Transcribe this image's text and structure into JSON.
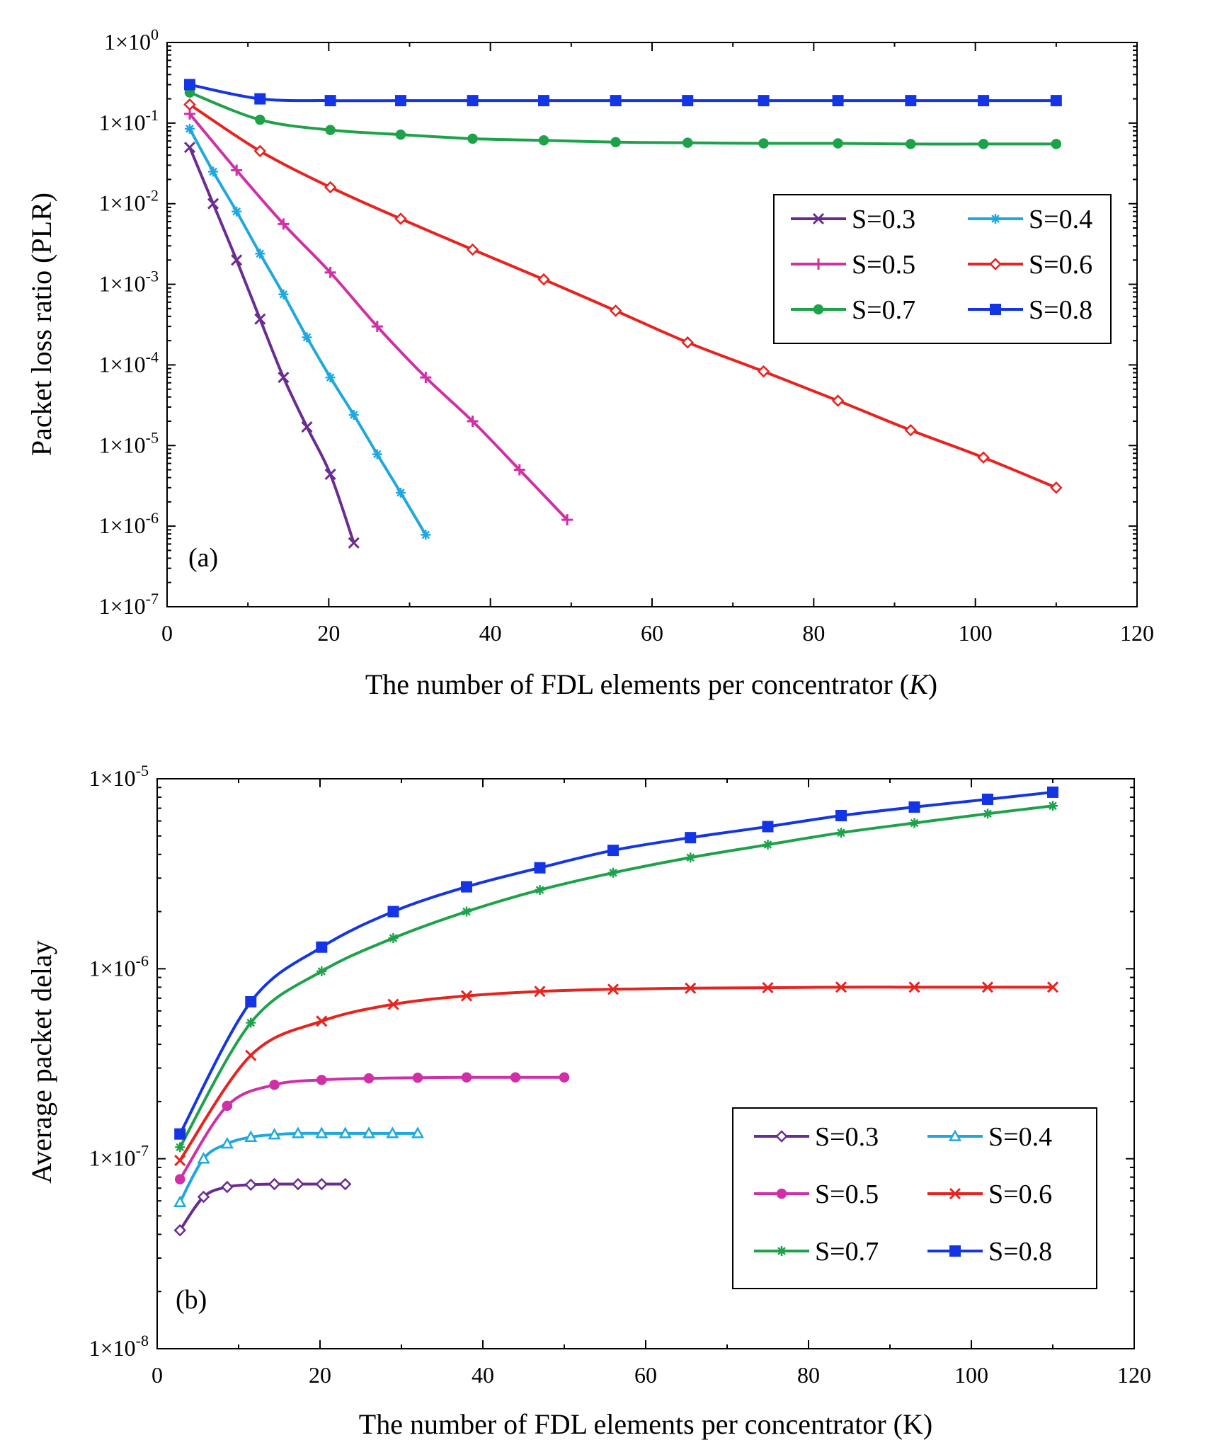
{
  "chart_data": [
    {
      "type": "line",
      "panel_label": "(a)",
      "xlabel_prefix": "The number of FDL elements per concentrator (",
      "xlabel_var": "K",
      "xlabel_suffix": ")",
      "ylabel": "Packet loss ratio (PLR)",
      "xlim": [
        0,
        120
      ],
      "ylim": [
        1e-07,
        1
      ],
      "yscale": "log",
      "x_ticks": [
        "0",
        "20",
        "40",
        "60",
        "80",
        "100",
        "120"
      ],
      "y_ticks": [
        {
          "base": "1×10",
          "exp": "0"
        },
        {
          "base": "1×10",
          "exp": "-1"
        },
        {
          "base": "1×10",
          "exp": "-2"
        },
        {
          "base": "1×10",
          "exp": "-3"
        },
        {
          "base": "1×10",
          "exp": "-4"
        },
        {
          "base": "1×10",
          "exp": "-5"
        },
        {
          "base": "1×10",
          "exp": "-6"
        },
        {
          "base": "1×10",
          "exp": "-7"
        }
      ],
      "grid": false,
      "legend_position": "upper-right",
      "series": [
        {
          "name": "S=0.3",
          "color": "#6a2c91",
          "marker": "x",
          "x": [
            2.8,
            5.7,
            8.6,
            11.5,
            14.4,
            17.3,
            20.2,
            23.1
          ],
          "y": [
            0.05,
            0.01,
            0.002,
            0.00037,
            7e-05,
            1.7e-05,
            4.4e-06,
            6.2e-07
          ]
        },
        {
          "name": "S=0.4",
          "color": "#1fa8e0",
          "marker": "asterisk",
          "x": [
            2.8,
            5.7,
            8.6,
            11.5,
            14.4,
            17.3,
            20.2,
            23.1,
            26,
            28.9,
            32
          ],
          "y": [
            0.085,
            0.025,
            0.008,
            0.0024,
            0.00075,
            0.00022,
            7e-05,
            2.4e-05,
            7.8e-06,
            2.6e-06,
            7.8e-07
          ]
        },
        {
          "name": "S=0.5",
          "color": "#d02fa6",
          "marker": "plus",
          "x": [
            2.8,
            8.6,
            14.4,
            20.2,
            26,
            32,
            37.8,
            43.6,
            49.5
          ],
          "y": [
            0.13,
            0.026,
            0.0056,
            0.0014,
            0.0003,
            7e-05,
            2e-05,
            5e-06,
            1.2e-06
          ]
        },
        {
          "name": "S=0.6",
          "color": "#e8221e",
          "marker": "diamond",
          "x": [
            2.8,
            11.5,
            20.2,
            28.9,
            37.8,
            46.6,
            55.5,
            64.4,
            73.8,
            83,
            92,
            101,
            110
          ],
          "y": [
            0.17,
            0.045,
            0.016,
            0.0065,
            0.0027,
            0.00115,
            0.00047,
            0.00019,
            8.3e-05,
            3.6e-05,
            1.55e-05,
            7.1e-06,
            3e-06
          ]
        },
        {
          "name": "S=0.7",
          "color": "#1da24a",
          "marker": "circle",
          "x": [
            2.8,
            11.5,
            20.2,
            28.9,
            37.8,
            46.6,
            55.5,
            64.4,
            73.8,
            83,
            92,
            101,
            110
          ],
          "y": [
            0.24,
            0.11,
            0.082,
            0.072,
            0.064,
            0.061,
            0.058,
            0.057,
            0.056,
            0.056,
            0.055,
            0.055,
            0.055
          ]
        },
        {
          "name": "S=0.8",
          "color": "#1435e6",
          "marker": "square",
          "x": [
            2.8,
            11.5,
            20.2,
            28.9,
            37.8,
            46.6,
            55.5,
            64.4,
            73.8,
            83,
            92,
            101,
            110
          ],
          "y": [
            0.3,
            0.2,
            0.19,
            0.19,
            0.19,
            0.19,
            0.19,
            0.19,
            0.19,
            0.19,
            0.19,
            0.19,
            0.19
          ]
        }
      ]
    },
    {
      "type": "line",
      "panel_label": "(b)",
      "xlabel_prefix": "The number of FDL elements per concentrator (K)",
      "xlabel_var": "",
      "xlabel_suffix": "",
      "ylabel": "Average packet delay",
      "xlim": [
        0,
        120
      ],
      "ylim": [
        1e-08,
        1e-05
      ],
      "yscale": "log",
      "x_ticks": [
        "0",
        "20",
        "40",
        "60",
        "80",
        "100",
        "120"
      ],
      "y_ticks": [
        {
          "base": "1×10",
          "exp": "-5"
        },
        {
          "base": "1×10",
          "exp": "-6"
        },
        {
          "base": "1×10",
          "exp": "-7"
        },
        {
          "base": "1×10",
          "exp": "-8"
        }
      ],
      "grid": false,
      "legend_position": "lower-right",
      "series": [
        {
          "name": "S=0.3",
          "color": "#6a2c91",
          "marker": "diamond",
          "x": [
            2.8,
            5.7,
            8.6,
            11.5,
            14.4,
            17.3,
            20.2,
            23.1
          ],
          "y": [
            4.2e-08,
            6.3e-08,
            7.1e-08,
            7.3e-08,
            7.35e-08,
            7.35e-08,
            7.35e-08,
            7.35e-08
          ]
        },
        {
          "name": "S=0.4",
          "color": "#1fa8e0",
          "marker": "triangle",
          "x": [
            2.8,
            5.7,
            8.6,
            11.5,
            14.4,
            17.3,
            20.2,
            23.1,
            26,
            28.9,
            32
          ],
          "y": [
            5.9e-08,
            1e-07,
            1.2e-07,
            1.3e-07,
            1.34e-07,
            1.36e-07,
            1.36e-07,
            1.36e-07,
            1.36e-07,
            1.36e-07,
            1.36e-07
          ]
        },
        {
          "name": "S=0.5",
          "color": "#d02fa6",
          "marker": "circle",
          "x": [
            2.8,
            8.6,
            14.4,
            20.2,
            26,
            32,
            38,
            44,
            50
          ],
          "y": [
            7.8e-08,
            1.9e-07,
            2.45e-07,
            2.6e-07,
            2.65e-07,
            2.67e-07,
            2.68e-07,
            2.68e-07,
            2.68e-07
          ]
        },
        {
          "name": "S=0.6",
          "color": "#e8221e",
          "marker": "x",
          "x": [
            2.8,
            11.5,
            20.2,
            29,
            38,
            47,
            56,
            65.5,
            75,
            84,
            93,
            102,
            110
          ],
          "y": [
            9.8e-08,
            3.5e-07,
            5.3e-07,
            6.5e-07,
            7.2e-07,
            7.6e-07,
            7.8e-07,
            7.9e-07,
            7.95e-07,
            8e-07,
            8e-07,
            8e-07,
            8e-07
          ]
        },
        {
          "name": "S=0.7",
          "color": "#1da24a",
          "marker": "asterisk",
          "x": [
            2.8,
            11.5,
            20.2,
            29,
            38,
            47,
            56,
            65.5,
            75,
            84,
            93,
            102,
            110
          ],
          "y": [
            1.15e-07,
            5.2e-07,
            9.7e-07,
            1.45e-06,
            2e-06,
            2.6e-06,
            3.2e-06,
            3.85e-06,
            4.5e-06,
            5.2e-06,
            5.85e-06,
            6.55e-06,
            7.2e-06
          ]
        },
        {
          "name": "S=0.8",
          "color": "#1435e6",
          "marker": "square",
          "x": [
            2.8,
            11.5,
            20.2,
            29,
            38,
            47,
            56,
            65.5,
            75,
            84,
            93,
            102,
            110
          ],
          "y": [
            1.35e-07,
            6.7e-07,
            1.3e-06,
            2e-06,
            2.7e-06,
            3.4e-06,
            4.2e-06,
            4.9e-06,
            5.6e-06,
            6.4e-06,
            7.1e-06,
            7.8e-06,
            8.5e-06
          ]
        }
      ]
    }
  ]
}
